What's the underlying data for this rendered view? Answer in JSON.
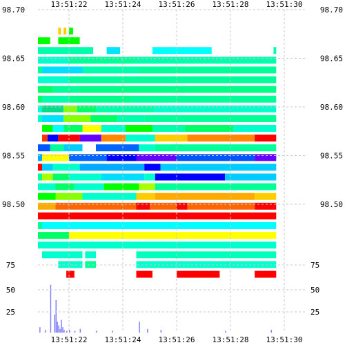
{
  "chart_data": [
    {
      "type": "heatmap",
      "title": "",
      "xlabel": "",
      "ylabel": "",
      "x_ticks": [
        "13:51:22",
        "13:51:24",
        "13:51:26",
        "13:51:28",
        "13:51:30"
      ],
      "y_ticks": [
        "98.70",
        "98.65",
        "98.60",
        "98.55",
        "98.50"
      ],
      "ylim": [
        98.455,
        98.7
      ],
      "grid": true,
      "colorscale": [
        "#0000ff",
        "#00ffff",
        "#00ff00",
        "#ffff00",
        "#ff8000",
        "#ff0000"
      ],
      "rows": [
        {
          "y": 98.678,
          "cells": [
            [
              0,
              0.7,
              "#ffcc00"
            ],
            [
              1.6,
              1.7,
              "#ffcc00"
            ],
            [
              1.8,
              1.9,
              "#ffcc00"
            ],
            [
              2.0,
              2.15,
              "#00ff00"
            ]
          ]
        },
        {
          "y": 98.668,
          "cells": [
            [
              0,
              1.3,
              "#00ff00"
            ],
            [
              1.6,
              2.4,
              "#00ff00"
            ]
          ]
        },
        {
          "y": 98.658,
          "cells": [
            [
              0,
              2.9,
              "#00ffaa"
            ],
            [
              3.4,
              3.9,
              "#00e5ff"
            ],
            [
              5.1,
              7.3,
              "#00ffff"
            ],
            [
              9.6,
              9.7,
              "#00ffaa"
            ]
          ]
        },
        {
          "y": 98.648,
          "cells": [
            [
              0,
              0.8,
              "#00ffb0"
            ],
            [
              0.8,
              2.0,
              "#00ffcc"
            ],
            [
              2.0,
              4.5,
              "#00ff99"
            ],
            [
              4.5,
              9.7,
              "#00ffaa"
            ]
          ]
        },
        {
          "y": 98.638,
          "cells": [
            [
              0,
              1.0,
              "#00ff99"
            ],
            [
              1.0,
              2.5,
              "#00ddff"
            ],
            [
              2.5,
              4.6,
              "#00ffaa"
            ],
            [
              4.6,
              9.7,
              "#00ff99"
            ]
          ]
        },
        {
          "y": 98.628,
          "cells": [
            [
              0,
              2.0,
              "#00ffcc"
            ],
            [
              2.0,
              9.7,
              "#00ff99"
            ]
          ]
        },
        {
          "y": 98.618,
          "cells": [
            [
              0,
              1.4,
              "#00ff66"
            ],
            [
              1.4,
              2.4,
              "#00ff99"
            ],
            [
              2.4,
              9.7,
              "#00ff88"
            ]
          ]
        },
        {
          "y": 98.608,
          "cells": [
            [
              0,
              1.0,
              "#00ff66"
            ],
            [
              1.0,
              2.0,
              "#00ffaa"
            ],
            [
              2.0,
              4.3,
              "#00ff88"
            ],
            [
              4.3,
              9.7,
              "#00ff99"
            ]
          ]
        },
        {
          "y": 98.598,
          "cells": [
            [
              0,
              0.5,
              "#00ffff"
            ],
            [
              0.5,
              1.0,
              "#00ffcc"
            ],
            [
              1.0,
              1.8,
              "#00dd88"
            ],
            [
              1.8,
              2.3,
              "#88ff00"
            ],
            [
              2.3,
              3.0,
              "#00ff66"
            ],
            [
              3.0,
              5.2,
              "#00ffaa"
            ],
            [
              5.2,
              9.7,
              "#00ffcc"
            ]
          ]
        },
        {
          "y": 98.588,
          "cells": [
            [
              0,
              0.3,
              "#00ffff"
            ],
            [
              0.3,
              1.0,
              "#00ffcc"
            ],
            [
              1.0,
              1.8,
              "#00e0ff"
            ],
            [
              1.8,
              2.8,
              "#88ff00"
            ],
            [
              2.8,
              3.8,
              "#00ff66"
            ],
            [
              3.8,
              4.8,
              "#00ffaa"
            ],
            [
              4.8,
              9.7,
              "#00ff99"
            ]
          ]
        },
        {
          "y": 98.578,
          "cells": [
            [
              1.0,
              1.4,
              "#00ff00"
            ],
            [
              1.4,
              1.8,
              "#00ffff"
            ],
            [
              1.8,
              2.5,
              "#00ff66"
            ],
            [
              2.5,
              3.2,
              "#ffff00"
            ],
            [
              3.2,
              4.1,
              "#00ffcc"
            ],
            [
              4.1,
              5.1,
              "#00ff00"
            ],
            [
              5.1,
              6.3,
              "#00ffaa"
            ],
            [
              6.3,
              8.1,
              "#00ff66"
            ],
            [
              8.1,
              9.7,
              "#00ffcc"
            ]
          ]
        },
        {
          "y": 98.568,
          "cells": [
            [
              1.0,
              1.2,
              "#ff3300"
            ],
            [
              1.2,
              1.6,
              "#0000ff"
            ],
            [
              1.6,
              2.4,
              "#ff0000"
            ],
            [
              2.4,
              3.2,
              "#6600ff"
            ],
            [
              3.2,
              4.1,
              "#ff8800"
            ],
            [
              4.1,
              5.2,
              "#00ffcc"
            ],
            [
              5.2,
              6.4,
              "#ffcc00"
            ],
            [
              6.4,
              8.9,
              "#ff8800"
            ],
            [
              8.9,
              9.7,
              "#ff0000"
            ]
          ]
        },
        {
          "y": 98.558,
          "cells": [
            [
              0,
              0.6,
              "#00ffff"
            ],
            [
              0.6,
              1.3,
              "#0055ff"
            ],
            [
              1.3,
              1.8,
              "#00ff99"
            ],
            [
              1.8,
              2.5,
              "#00ccff"
            ],
            [
              3.0,
              4.6,
              "#0066ff"
            ],
            [
              4.6,
              5.2,
              "#00ffcc"
            ],
            [
              5.2,
              9.7,
              "#00ff99"
            ]
          ]
        },
        {
          "y": 98.548,
          "cells": [
            [
              0,
              0.5,
              "#00ffcc"
            ],
            [
              0.5,
              1.0,
              "#00aaff"
            ],
            [
              1.0,
              2.0,
              "#ffff00"
            ],
            [
              2.0,
              3.4,
              "#0066ff"
            ],
            [
              3.4,
              4.5,
              "#0000ff"
            ],
            [
              4.5,
              6.0,
              "#6600ff"
            ],
            [
              6.0,
              8.9,
              "#0055ff"
            ],
            [
              8.9,
              9.7,
              "#6600ff"
            ]
          ]
        },
        {
          "y": 98.538,
          "cells": [
            [
              0,
              1.0,
              "#ff0000"
            ],
            [
              1.0,
              1.4,
              "#00ccff"
            ],
            [
              1.4,
              2.4,
              "#00ffcc"
            ],
            [
              2.4,
              4.8,
              "#00aaff"
            ],
            [
              4.8,
              5.4,
              "#0000ff"
            ],
            [
              5.4,
              9.7,
              "#00ccff"
            ]
          ]
        },
        {
          "y": 98.528,
          "cells": [
            [
              0,
              1.0,
              "#00ff99"
            ],
            [
              1.0,
              1.4,
              "#aaff00"
            ],
            [
              1.4,
              2.0,
              "#00ff66"
            ],
            [
              2.0,
              3.2,
              "#00ffcc"
            ],
            [
              3.2,
              4.8,
              "#00ddff"
            ],
            [
              4.8,
              5.2,
              "#00ffcc"
            ],
            [
              5.2,
              7.8,
              "#0000ff"
            ],
            [
              7.8,
              9.7,
              "#00ccff"
            ]
          ]
        },
        {
          "y": 98.518,
          "cells": [
            [
              0,
              1.5,
              "#00ffcc"
            ],
            [
              1.5,
              2.2,
              "#00ff66"
            ],
            [
              2.2,
              3.3,
              "#00ffcc"
            ],
            [
              3.3,
              4.6,
              "#00ff00"
            ],
            [
              4.6,
              5.2,
              "#aaff00"
            ],
            [
              5.2,
              9.7,
              "#00ff99"
            ]
          ]
        },
        {
          "y": 98.508,
          "cells": [
            [
              0,
              1.5,
              "#00ff00"
            ],
            [
              1.5,
              2.5,
              "#88ff00"
            ],
            [
              2.5,
              4.5,
              "#00ffcc"
            ],
            [
              4.5,
              5.2,
              "#ffcc00"
            ],
            [
              5.2,
              8.9,
              "#ffaa00"
            ],
            [
              8.9,
              9.7,
              "#ffcc00"
            ]
          ]
        },
        {
          "y": 98.498,
          "cells": [
            [
              0,
              1.5,
              "#ffaa00"
            ],
            [
              1.5,
              4.5,
              "#ff6600"
            ],
            [
              4.5,
              5.0,
              "#ff0000"
            ],
            [
              5.0,
              6.0,
              "#ff6600"
            ],
            [
              6.0,
              6.4,
              "#ff0000"
            ],
            [
              6.4,
              8.9,
              "#ff6600"
            ],
            [
              8.9,
              9.7,
              "#ff0000"
            ]
          ]
        },
        {
          "y": 98.488,
          "cells": [
            [
              0,
              9.7,
              "#ff0000"
            ]
          ]
        },
        {
          "y": 98.478,
          "cells": [
            [
              0,
              1.0,
              "#00ff99"
            ],
            [
              1.0,
              9.7,
              "#00ffff"
            ]
          ]
        },
        {
          "y": 98.468,
          "cells": [
            [
              0,
              2.0,
              "#00ff66"
            ],
            [
              2.0,
              9.7,
              "#ffff00"
            ]
          ]
        },
        {
          "y": 98.458,
          "cells": [
            [
              0,
              0.5,
              "#00ff99"
            ],
            [
              0.5,
              9.7,
              "#00ffcc"
            ]
          ]
        },
        {
          "y": 98.448,
          "cells": [
            [
              1.0,
              2.5,
              "#00ffcc"
            ],
            [
              2.6,
              3.0,
              "#00ffcc"
            ],
            [
              4.5,
              9.7,
              "#00ffbb"
            ]
          ]
        },
        {
          "y": 98.438,
          "cells": [
            [
              1.6,
              2.5,
              "#00ffcc"
            ],
            [
              2.6,
              3.0,
              "#00ff99"
            ],
            [
              4.5,
              9.7,
              "#00ffcc"
            ]
          ]
        },
        {
          "y": 98.428,
          "cells": [
            [
              1.9,
              2.2,
              "#ff0000"
            ],
            [
              4.5,
              5.1,
              "#ff0000"
            ],
            [
              6.0,
              7.6,
              "#ff0000"
            ],
            [
              8.9,
              9.7,
              "#ff0000"
            ]
          ]
        }
      ]
    },
    {
      "type": "bar",
      "title": "",
      "xlabel": "",
      "ylabel": "",
      "x_ticks": [
        "13:51:22",
        "13:51:24",
        "13:51:26",
        "13:51:28",
        "13:51:30"
      ],
      "y_ticks": [
        "75",
        "50",
        "25"
      ],
      "ylim": [
        0,
        75
      ],
      "grid": true,
      "bar_color": "#8080ff",
      "x": [
        0.9,
        1.1,
        1.3,
        1.45,
        1.5,
        1.55,
        1.6,
        1.65,
        1.7,
        1.75,
        1.8,
        1.9,
        2.0,
        2.2,
        2.4,
        3.0,
        3.6,
        4.6,
        4.9,
        5.4,
        7.8,
        9.5
      ],
      "values": [
        6,
        3,
        53,
        20,
        36,
        12,
        8,
        4,
        14,
        6,
        3,
        2,
        3,
        2,
        4,
        2,
        2,
        12,
        4,
        3,
        2,
        3
      ]
    }
  ]
}
